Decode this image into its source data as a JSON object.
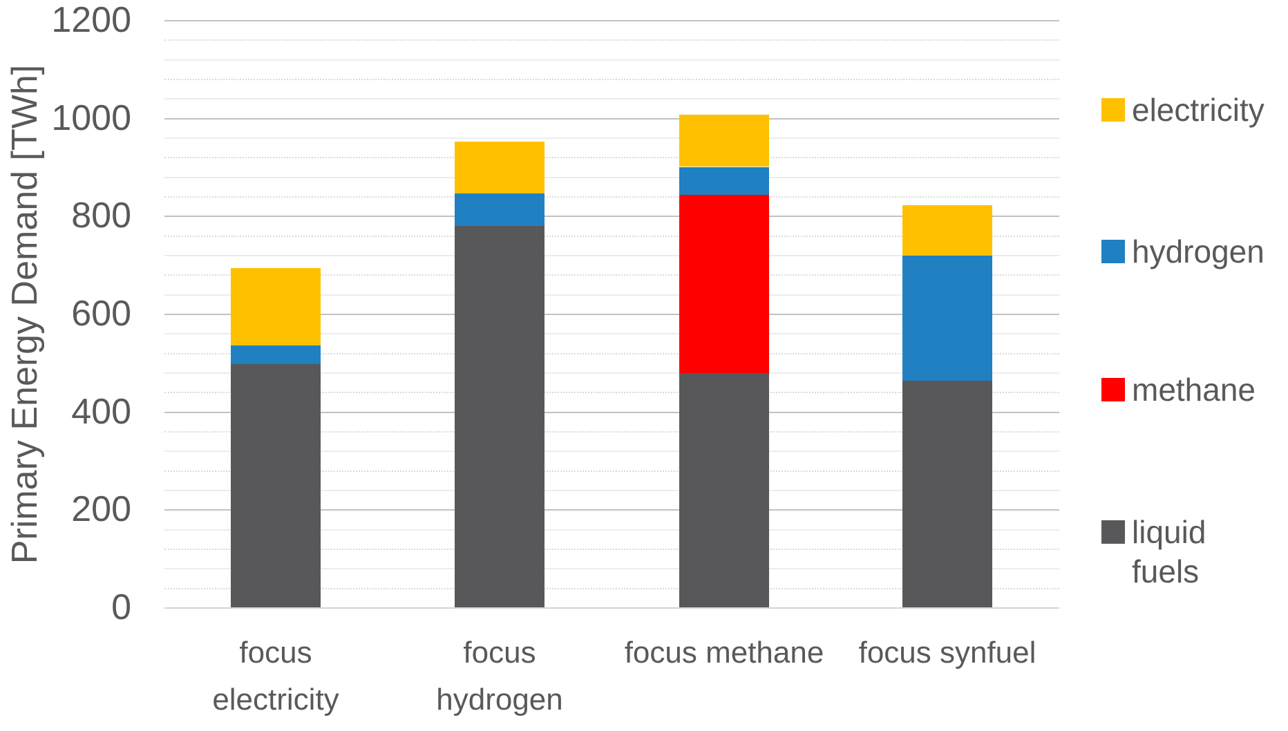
{
  "chart_data": {
    "type": "bar",
    "stacked": true,
    "title": "",
    "xlabel": "",
    "ylabel": "Primary Energy Demand [TWh]",
    "ylim": [
      0,
      1200
    ],
    "major_step": 200,
    "minor_step": 40,
    "grid": "on",
    "yticks": [
      0,
      200,
      400,
      600,
      800,
      1000,
      1200
    ],
    "categories": [
      "focus electricity",
      "focus hydrogen",
      "focus methane",
      "focus synfuel"
    ],
    "x_tick_lines": [
      [
        "focus",
        "electricity"
      ],
      [
        "focus",
        "hydrogen"
      ],
      [
        "focus methane"
      ],
      [
        "focus synfuel"
      ]
    ],
    "series": [
      {
        "key": "liquid-fuels",
        "name": "liquid fuels",
        "color": "#58585a",
        "values": [
          497,
          780,
          478,
          463
        ]
      },
      {
        "key": "methane",
        "name": "methane",
        "color": "#ff0000",
        "values": [
          0,
          0,
          365,
          0
        ]
      },
      {
        "key": "hydrogen",
        "name": "hydrogen",
        "color": "#2080c2",
        "values": [
          38,
          66,
          57,
          256
        ]
      },
      {
        "key": "electricity",
        "name": "electricity",
        "color": "#ffc000",
        "values": [
          158,
          105,
          106,
          103
        ]
      }
    ],
    "totals": [
      693,
      951,
      1006,
      822
    ],
    "legend_position": "right",
    "legend": {
      "items": [
        {
          "key": "electricity",
          "color": "#ffc000",
          "lines": [
            "electricity"
          ]
        },
        {
          "key": "hydrogen",
          "color": "#2080c2",
          "lines": [
            "hydrogen"
          ]
        },
        {
          "key": "methane",
          "color": "#ff0000",
          "lines": [
            "methane"
          ]
        },
        {
          "key": "liquid-fuels",
          "color": "#58585a",
          "lines": [
            "liquid",
            "fuels"
          ]
        }
      ]
    }
  }
}
